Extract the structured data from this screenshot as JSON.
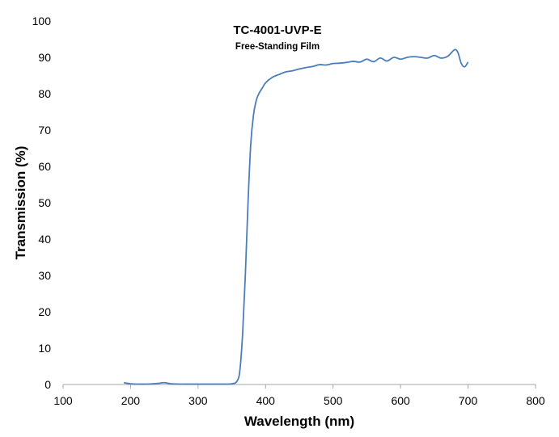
{
  "chart_data": {
    "type": "line",
    "title": "TC-4001-UVP-E",
    "subtitle": "Free-Standing Film",
    "xlabel": "Wavelength (nm)",
    "ylabel": "Transmission (%)",
    "xlim": [
      100,
      800
    ],
    "ylim": [
      0,
      100
    ],
    "xticks": [
      "100",
      "200",
      "300",
      "400",
      "500",
      "600",
      "700",
      "800"
    ],
    "yticks": [
      "0",
      "10",
      "20",
      "30",
      "40",
      "50",
      "60",
      "70",
      "80",
      "90",
      "100"
    ],
    "grid": false,
    "legend": "none",
    "line_color": "#4a7ebb",
    "series": [
      {
        "x": [
          190,
          200,
          220,
          240,
          250,
          260,
          280,
          300,
          330,
          350,
          358,
          362,
          366,
          370,
          374,
          378,
          382,
          386,
          390,
          395,
          400,
          410,
          420,
          430,
          440,
          450,
          460,
          470,
          480,
          490,
          500,
          510,
          520,
          530,
          540,
          550,
          560,
          570,
          580,
          590,
          600,
          610,
          620,
          630,
          640,
          650,
          660,
          670,
          680,
          685,
          690,
          695,
          700
        ],
        "y": [
          0.5,
          0.2,
          0.1,
          0.3,
          0.5,
          0.2,
          0.1,
          0.1,
          0.1,
          0.2,
          1,
          4,
          14,
          30,
          50,
          66,
          74,
          78,
          80,
          81.5,
          83,
          84.5,
          85.3,
          86,
          86.3,
          86.8,
          87.2,
          87.5,
          88,
          87.9,
          88.3,
          88.4,
          88.6,
          88.9,
          88.7,
          89.5,
          88.8,
          89.8,
          89,
          90,
          89.5,
          90,
          90.2,
          90,
          89.8,
          90.5,
          89.8,
          90.3,
          92.1,
          91.3,
          88.3,
          87.4,
          88.7
        ]
      }
    ]
  }
}
